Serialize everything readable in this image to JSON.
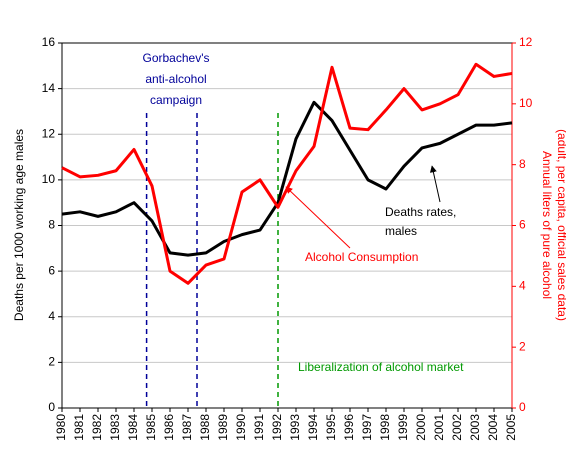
{
  "chart_data": {
    "type": "line",
    "x": [
      1980,
      1981,
      1982,
      1983,
      1984,
      1985,
      1986,
      1987,
      1988,
      1989,
      1990,
      1991,
      1992,
      1993,
      1994,
      1995,
      1996,
      1997,
      1998,
      1999,
      2000,
      2001,
      2002,
      2003,
      2004,
      2005
    ],
    "xlim": [
      1980,
      2005
    ],
    "xticks": [
      1980,
      1981,
      1982,
      1983,
      1984,
      1985,
      1986,
      1987,
      1988,
      1989,
      1990,
      1991,
      1992,
      1993,
      1994,
      1995,
      1996,
      1997,
      1998,
      1999,
      2000,
      2001,
      2002,
      2003,
      2004,
      2005
    ],
    "ylim": [
      0,
      16
    ],
    "yticks": [
      0,
      2,
      4,
      6,
      8,
      10,
      12,
      14,
      16
    ],
    "y2lim": [
      0,
      12
    ],
    "y2ticks": [
      0,
      2,
      4,
      6,
      8,
      10,
      12
    ],
    "ylabel": "Deaths per 1000 working age males",
    "y2label": [
      "Annual liters of pure alcohol",
      "(adult, per capita, official sales data)"
    ],
    "grid": true,
    "series": [
      {
        "name": "Deaths rates, males",
        "label_lines": [
          "Deaths rates,",
          "males"
        ],
        "color": "#000000",
        "values": [
          8.5,
          8.6,
          8.4,
          8.6,
          9.0,
          8.2,
          6.8,
          6.7,
          6.8,
          7.3,
          7.6,
          7.8,
          9.0,
          11.8,
          13.4,
          12.6,
          11.3,
          10.0,
          9.6,
          10.6,
          11.4,
          11.6,
          12.0,
          12.4,
          12.4,
          12.5
        ]
      },
      {
        "name": "Alcohol Consumption",
        "color": "#ff0000",
        "axis": "y2",
        "values": [
          7.9,
          7.6,
          7.65,
          7.8,
          8.5,
          7.3,
          4.5,
          4.1,
          4.7,
          4.9,
          7.1,
          7.5,
          6.6,
          7.8,
          8.6,
          11.2,
          9.2,
          9.15,
          9.8,
          10.5,
          9.8,
          10.0,
          10.3,
          11.3,
          10.9,
          11.0
        ]
      }
    ],
    "events": [
      {
        "x": 1984.7,
        "color": "#000099"
      },
      {
        "x": 1987.5,
        "color": "#000099"
      },
      {
        "x": 1992.0,
        "color": "#009900"
      }
    ],
    "annotations": [
      {
        "lines": [
          "Gorbachev's",
          "anti-alcohol",
          "campaign"
        ],
        "color": "#000099"
      },
      {
        "lines": [
          "Liberalization of alcohol market"
        ],
        "color": "#009900"
      }
    ]
  }
}
